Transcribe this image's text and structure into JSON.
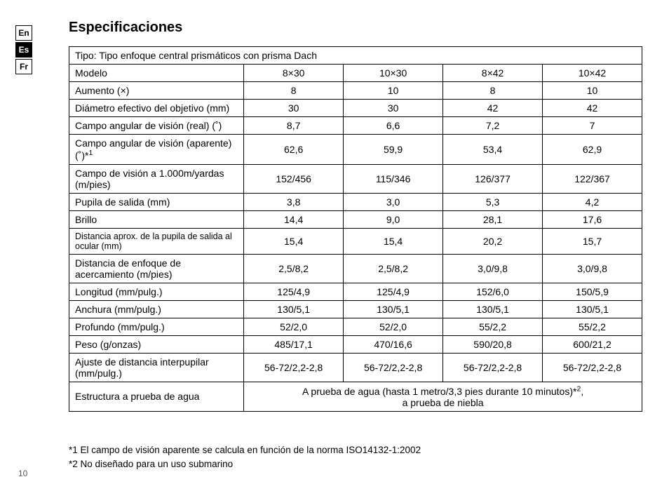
{
  "lang_tabs": {
    "en": "En",
    "es": "Es",
    "fr": "Fr",
    "active": "es"
  },
  "title": "Especificaciones",
  "type_row": "Tipo: Tipo enfoque central prismáticos con prisma Dach",
  "header": {
    "label": "Modelo",
    "c1": "8×30",
    "c2": "10×30",
    "c3": "8×42",
    "c4": "10×42"
  },
  "rows": {
    "r1": {
      "label": "Aumento (×)",
      "c1": "8",
      "c2": "10",
      "c3": "8",
      "c4": "10"
    },
    "r2": {
      "label": "Diámetro efectivo del objetivo (mm)",
      "c1": "30",
      "c2": "30",
      "c3": "42",
      "c4": "42"
    },
    "r3": {
      "label": "Campo angular de visión (real) (˚)",
      "c1": "8,7",
      "c2": "6,6",
      "c3": "7,2",
      "c4": "7"
    },
    "r4": {
      "label_html": "Campo angular de visión (aparente) (˚)*1",
      "c1": "62,6",
      "c2": "59,9",
      "c3": "53,4",
      "c4": "62,9"
    },
    "r5": {
      "label": "Campo de visión a 1.000m/yardas (m/pies)",
      "c1": "152/456",
      "c2": "115/346",
      "c3": "126/377",
      "c4": "122/367"
    },
    "r6": {
      "label": "Pupila de salida (mm)",
      "c1": "3,8",
      "c2": "3,0",
      "c3": "5,3",
      "c4": "4,2"
    },
    "r7": {
      "label": "Brillo",
      "c1": "14,4",
      "c2": "9,0",
      "c3": "28,1",
      "c4": "17,6"
    },
    "r8": {
      "label_html": "Distancia aprox. de la pupila de salida al ocular (mm)",
      "c1": "15,4",
      "c2": "15,4",
      "c3": "20,2",
      "c4": "15,7"
    },
    "r9": {
      "label": "Distancia de enfoque de acercamiento (m/pies)",
      "c1": "2,5/8,2",
      "c2": "2,5/8,2",
      "c3": "3,0/9,8",
      "c4": "3,0/9,8"
    },
    "r10": {
      "label": "Longitud (mm/pulg.)",
      "c1": "125/4,9",
      "c2": "125/4,9",
      "c3": "152/6,0",
      "c4": "150/5,9"
    },
    "r11": {
      "label": "Anchura (mm/pulg.)",
      "c1": "130/5,1",
      "c2": "130/5,1",
      "c3": "130/5,1",
      "c4": "130/5,1"
    },
    "r12": {
      "label": "Profundo (mm/pulg.)",
      "c1": "52/2,0",
      "c2": "52/2,0",
      "c3": "55/2,2",
      "c4": "55/2,2"
    },
    "r13": {
      "label": "Peso (g/onzas)",
      "c1": "485/17,1",
      "c2": "470/16,6",
      "c3": "590/20,8",
      "c4": "600/21,2"
    },
    "r14": {
      "label": "Ajuste de distancia interpupilar (mm/pulg.)",
      "c1": "56-72/2,2-2,8",
      "c2": "56-72/2,2-2,8",
      "c3": "56-72/2,2-2,8",
      "c4": "56-72/2,2-2,8"
    },
    "r15": {
      "label": "Estructura a prueba de agua",
      "merged_line1": "A prueba de agua (hasta 1 metro/3,3 pies durante 10 minutos)*2,",
      "merged_line2": "a prueba de niebla"
    }
  },
  "footnotes": {
    "f1": "*1   El campo de visión aparente se calcula en función de la norma ISO14132-1:2002",
    "f2": "*2   No diseñado para un uso submarino"
  },
  "page_number": "10"
}
